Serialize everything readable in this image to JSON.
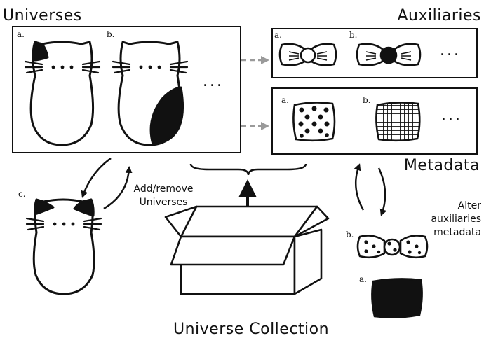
{
  "titles": {
    "universes": "Universes",
    "auxiliaries": "Auxiliaries",
    "metadata": "Metadata",
    "collection": "Universe Collection"
  },
  "labels": {
    "a": "a.",
    "b": "b.",
    "c": "c.",
    "ellipsis": "..."
  },
  "notes": {
    "add_remove": [
      "Add/remove",
      "Universes"
    ],
    "alter": [
      "Alter",
      "auxiliaries",
      "metadata"
    ]
  }
}
